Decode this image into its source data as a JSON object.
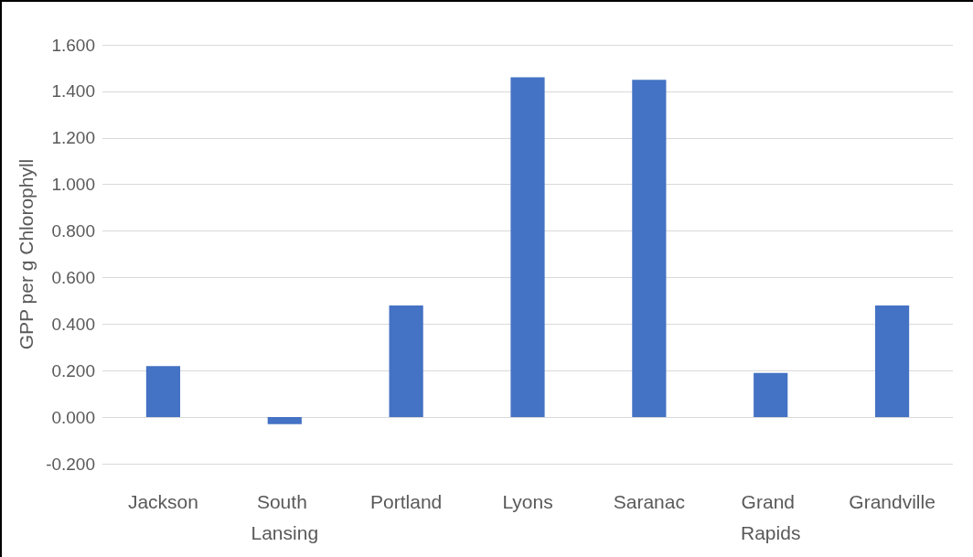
{
  "chart_data": {
    "type": "bar",
    "ylabel": "GPP per g Chlorophyll",
    "categories": [
      "Jackson",
      "South Lansing",
      "Portland",
      "Lyons",
      "Saranac",
      "Grand Rapids",
      "Grandville"
    ],
    "values": [
      0.22,
      -0.03,
      0.48,
      1.46,
      1.45,
      0.19,
      0.48
    ],
    "color": "#4472c4",
    "ylim": [
      -0.2,
      1.6
    ],
    "yticks": [
      {
        "value": -0.2,
        "label": "-0.200"
      },
      {
        "value": 0,
        "label": "0.000"
      },
      {
        "value": 0.2,
        "label": "0.200"
      },
      {
        "value": 0.4,
        "label": "0.400"
      },
      {
        "value": 0.6,
        "label": "0.600"
      },
      {
        "value": 0.8,
        "label": "0.800"
      },
      {
        "value": 1,
        "label": "1.000"
      },
      {
        "value": 1.2,
        "label": "1.200"
      },
      {
        "value": 1.4,
        "label": "1.400"
      },
      {
        "value": 1.6,
        "label": "1.600"
      }
    ],
    "grid": "y"
  }
}
